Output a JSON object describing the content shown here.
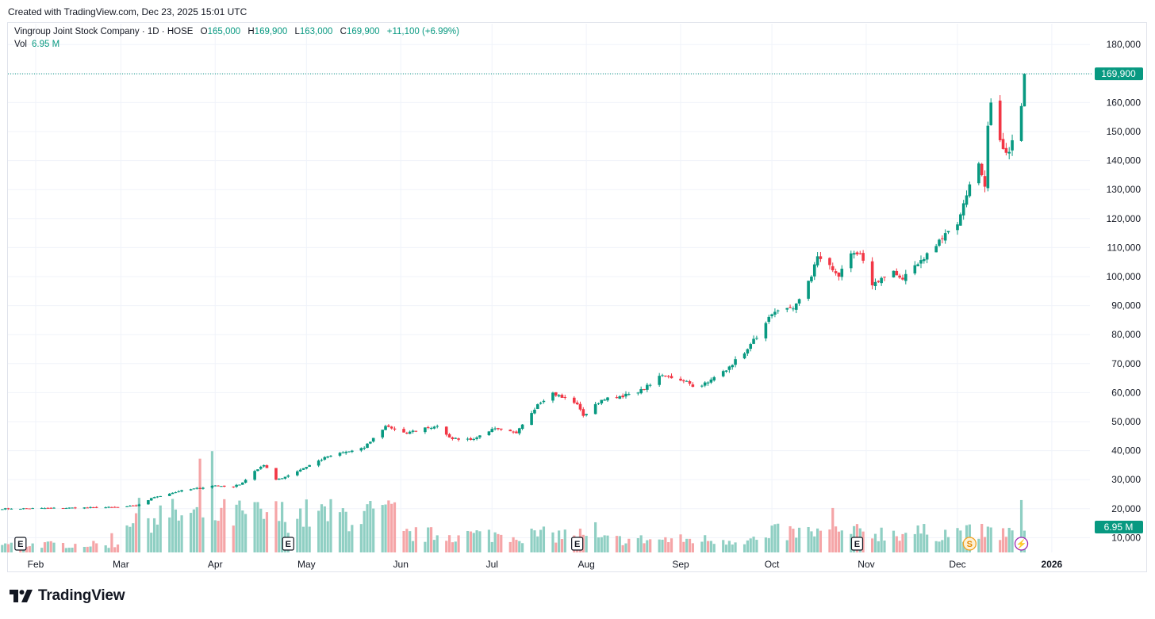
{
  "caption": "Created with TradingView.com, Dec 23, 2025 15:01 UTC",
  "legend": {
    "symbol": "Vingroup Joint Stock Company · 1D · HOSE",
    "o_label": "O",
    "o_value": "165,000",
    "h_label": "H",
    "h_value": "169,900",
    "l_label": "L",
    "l_value": "163,000",
    "c_label": "C",
    "c_value": "169,900",
    "change": "+11,100 (+6.99%)",
    "vol_label": "Vol",
    "vol_value": "6.95 M"
  },
  "brand": {
    "name": "TradingView",
    "icon": "tradingview-logo-icon"
  },
  "colors": {
    "up": "#089981",
    "down": "#f23645",
    "up_vol": "#8fcfc3",
    "down_vol": "#f5a5a7",
    "grid": "#f0f3fa",
    "axis_text": "#131722"
  },
  "chart_data": {
    "type": "candlestick",
    "title": "Vingroup Joint Stock Company · 1D · HOSE",
    "ylim": [
      0,
      183000
    ],
    "y_ticks": [
      10000,
      20000,
      30000,
      40000,
      50000,
      60000,
      70000,
      80000,
      90000,
      100000,
      110000,
      120000,
      130000,
      140000,
      150000,
      160000,
      170000,
      180000
    ],
    "y_tick_labels": [
      "10,000",
      "20,000",
      "30,000",
      "40,000",
      "50,000",
      "60,000",
      "70,000",
      "80,000",
      "90,000",
      "100,000",
      "110,000",
      "120,000",
      "130,000",
      "140,000",
      "150,000",
      "160,000",
      "170,000",
      "180,000"
    ],
    "x_tick_labels": [
      "Feb",
      "Mar",
      "Apr",
      "May",
      "Jun",
      "Jul",
      "Aug",
      "Sep",
      "Oct",
      "Nov",
      "Dec",
      "2026"
    ],
    "last_price": 169900,
    "last_price_label": "169,900",
    "last_volume_label": "6.95 M",
    "event_markers": [
      {
        "date": "2025-01-27",
        "label": "E",
        "type": "earnings"
      },
      {
        "date": "2025-04-25",
        "label": "E",
        "type": "earnings"
      },
      {
        "date": "2025-07-29",
        "label": "E",
        "type": "earnings"
      },
      {
        "date": "2025-10-29",
        "label": "E",
        "type": "earnings"
      },
      {
        "date": "2025-12-05",
        "label": "S",
        "type": "split"
      },
      {
        "date": "2025-12-22",
        "label": "⚡",
        "type": "event"
      }
    ],
    "anchors": [
      [
        "2025-01-24",
        20000
      ],
      [
        "2025-02-28",
        20500
      ],
      [
        "2025-03-06",
        21000
      ],
      [
        "2025-03-12",
        24000
      ],
      [
        "2025-03-20",
        26000
      ],
      [
        "2025-04-01",
        28000
      ],
      [
        "2025-04-07",
        27500
      ],
      [
        "2025-04-10",
        29000
      ],
      [
        "2025-04-14",
        33000
      ],
      [
        "2025-04-17",
        35000
      ],
      [
        "2025-04-21",
        30000
      ],
      [
        "2025-04-24",
        31000
      ],
      [
        "2025-05-08",
        38000
      ],
      [
        "2025-05-20",
        41000
      ],
      [
        "2025-05-27",
        48500
      ],
      [
        "2025-06-03",
        46000
      ],
      [
        "2025-06-10",
        48000
      ],
      [
        "2025-06-13",
        48500
      ],
      [
        "2025-06-18",
        44000
      ],
      [
        "2025-06-25",
        44000
      ],
      [
        "2025-07-01",
        47500
      ],
      [
        "2025-07-09",
        46000
      ],
      [
        "2025-07-11",
        49000
      ],
      [
        "2025-07-16",
        56000
      ],
      [
        "2025-07-21",
        60000
      ],
      [
        "2025-07-29",
        56000
      ],
      [
        "2025-07-31",
        52000
      ],
      [
        "2025-08-06",
        57500
      ],
      [
        "2025-08-18",
        60000
      ],
      [
        "2025-08-26",
        66000
      ],
      [
        "2025-09-03",
        64000
      ],
      [
        "2025-09-05",
        62000
      ],
      [
        "2025-09-10",
        63500
      ],
      [
        "2025-09-17",
        69000
      ],
      [
        "2025-09-23",
        75000
      ],
      [
        "2025-09-29",
        84000
      ],
      [
        "2025-10-01",
        87000
      ],
      [
        "2025-10-08",
        89000
      ],
      [
        "2025-10-14",
        100000
      ],
      [
        "2025-10-16",
        107000
      ],
      [
        "2025-10-20",
        104000
      ],
      [
        "2025-10-23",
        100000
      ],
      [
        "2025-10-27",
        108000
      ],
      [
        "2025-10-30",
        108000
      ],
      [
        "2025-11-03",
        97000
      ],
      [
        "2025-11-10",
        102000
      ],
      [
        "2025-11-13",
        99000
      ],
      [
        "2025-11-20",
        106000
      ],
      [
        "2025-11-27",
        115000
      ],
      [
        "2025-12-01",
        118000
      ],
      [
        "2025-12-04",
        128000
      ],
      [
        "2025-12-08",
        139000
      ],
      [
        "2025-12-10",
        131000
      ],
      [
        "2025-12-11",
        152000
      ],
      [
        "2025-12-12",
        160000
      ],
      [
        "2025-12-15",
        147000
      ],
      [
        "2025-12-16",
        144000
      ],
      [
        "2025-12-18",
        143000
      ],
      [
        "2025-12-19",
        147000
      ],
      [
        "2025-12-22",
        158800
      ],
      [
        "2025-12-23",
        169900
      ]
    ],
    "volume_note": "daily volume bars (M shares)"
  }
}
